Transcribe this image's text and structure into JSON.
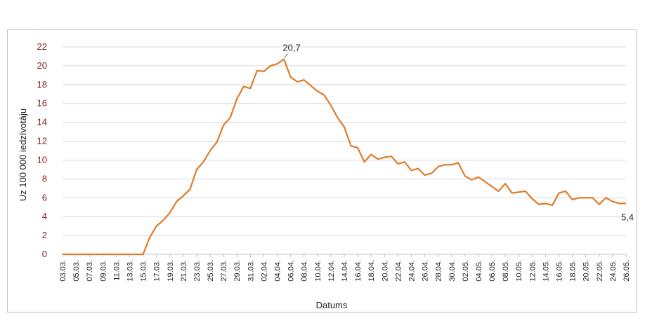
{
  "chart_data": {
    "type": "line",
    "xlabel": "Datums",
    "ylabel": "Uz 100 000 iedzīvotāju",
    "ylim": [
      0,
      22
    ],
    "y_ticks": [
      0,
      2,
      4,
      6,
      8,
      10,
      12,
      14,
      16,
      18,
      20,
      22
    ],
    "grid": true,
    "legend": "none",
    "line_color": "#e07b27",
    "x": [
      "03.03.",
      "04.03.",
      "05.03.",
      "06.03.",
      "07.03.",
      "08.03.",
      "09.03.",
      "10.03.",
      "11.03.",
      "12.03.",
      "13.03.",
      "14.03.",
      "15.03.",
      "16.03.",
      "17.03.",
      "18.03.",
      "19.03.",
      "20.03.",
      "21.03.",
      "22.03.",
      "23.03.",
      "24.03.",
      "25.03.",
      "26.03.",
      "27.03.",
      "28.03.",
      "29.03.",
      "30.03.",
      "31.03.",
      "01.04.",
      "02.04.",
      "03.04.",
      "04.04.",
      "05.04.",
      "06.04.",
      "07.04.",
      "08.04.",
      "09.04.",
      "10.04.",
      "11.04.",
      "12.04.",
      "13.04.",
      "14.04.",
      "15.04.",
      "16.04.",
      "17.04.",
      "18.04.",
      "19.04.",
      "20.04.",
      "21.04.",
      "22.04.",
      "23.04.",
      "24.04.",
      "25.04.",
      "26.04.",
      "27.04.",
      "28.04.",
      "29.04.",
      "30.04.",
      "01.05.",
      "02.05.",
      "03.05.",
      "04.05.",
      "05.05.",
      "06.05.",
      "07.05.",
      "08.05.",
      "09.05.",
      "10.05.",
      "11.05.",
      "12.05.",
      "13.05.",
      "14.05.",
      "15.05.",
      "16.05.",
      "17.05.",
      "18.05.",
      "19.05.",
      "20.05.",
      "21.05.",
      "22.05.",
      "23.05.",
      "24.05.",
      "25.05.",
      "26.05."
    ],
    "x_tick_labels": [
      "03.03.",
      "05.03.",
      "07.03.",
      "09.03.",
      "11.03.",
      "13.03.",
      "15.03.",
      "17.03.",
      "19.03.",
      "21.03.",
      "23.03.",
      "25.03.",
      "27.03.",
      "29.03.",
      "31.03.",
      "02.04.",
      "04.04.",
      "06.04.",
      "08.04.",
      "10.04.",
      "12.04.",
      "14.04.",
      "16.04.",
      "18.04.",
      "20.04.",
      "22.04.",
      "24.04.",
      "26.04.",
      "28.04.",
      "30.04.",
      "02.05.",
      "04.05.",
      "06.05.",
      "08.05.",
      "10.05.",
      "12.05.",
      "14.05.",
      "16.05.",
      "18.05.",
      "20.05.",
      "22.05.",
      "24.05.",
      "26.05."
    ],
    "values": [
      0,
      0,
      0,
      0,
      0,
      0,
      0,
      0,
      0,
      0,
      0,
      0,
      0,
      1.8,
      3.0,
      3.6,
      4.4,
      5.6,
      6.2,
      6.9,
      9.0,
      9.8,
      11.0,
      11.9,
      13.7,
      14.5,
      16.5,
      17.8,
      17.6,
      19.5,
      19.4,
      20.0,
      20.2,
      20.7,
      18.8,
      18.3,
      18.5,
      17.9,
      17.3,
      16.9,
      15.8,
      14.5,
      13.5,
      11.5,
      11.3,
      9.8,
      10.6,
      10.1,
      10.3,
      10.4,
      9.6,
      9.8,
      8.9,
      9.1,
      8.4,
      8.6,
      9.3,
      9.5,
      9.5,
      9.7,
      8.3,
      7.9,
      8.2,
      7.7,
      7.2,
      6.7,
      7.5,
      6.5,
      6.6,
      6.7,
      5.9,
      5.3,
      5.4,
      5.2,
      6.5,
      6.7,
      5.8,
      6.0,
      6.0,
      6.0,
      5.3,
      6.0,
      5.6,
      5.4,
      5.4
    ],
    "annotations": [
      {
        "label": "20,7",
        "x": "05.04.",
        "y": 20.7
      },
      {
        "label": "5,4",
        "x": "26.05.",
        "y": 5.4
      }
    ]
  }
}
